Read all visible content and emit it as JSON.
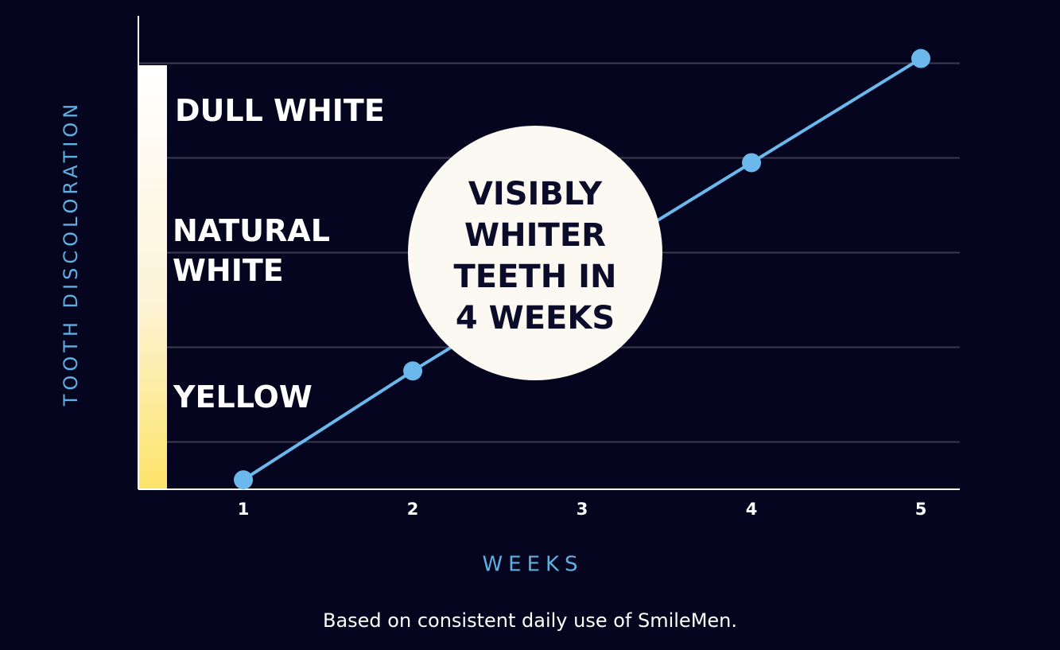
{
  "chart_data": {
    "type": "line",
    "y_label": "TOOTH DISCOLORATION",
    "x_label": "WEEKS",
    "x": [
      1,
      2,
      4,
      5
    ],
    "values": [
      2,
      25,
      69,
      91
    ],
    "color": "#6ab8ec",
    "xlim": [
      0.38,
      5.23
    ],
    "xticks": [
      1,
      2,
      3,
      4,
      5
    ],
    "ylim": [
      0,
      100
    ],
    "yticks": [
      10,
      30,
      50,
      70,
      90
    ],
    "grid": true,
    "band_labels": [
      "DULL WHITE",
      "NATURAL WHITE",
      "YELLOW"
    ],
    "callout": "VISIBLY WHITER TEETH IN 4 WEEKS",
    "footnote": "Based on consistent daily use of SmileMen."
  }
}
